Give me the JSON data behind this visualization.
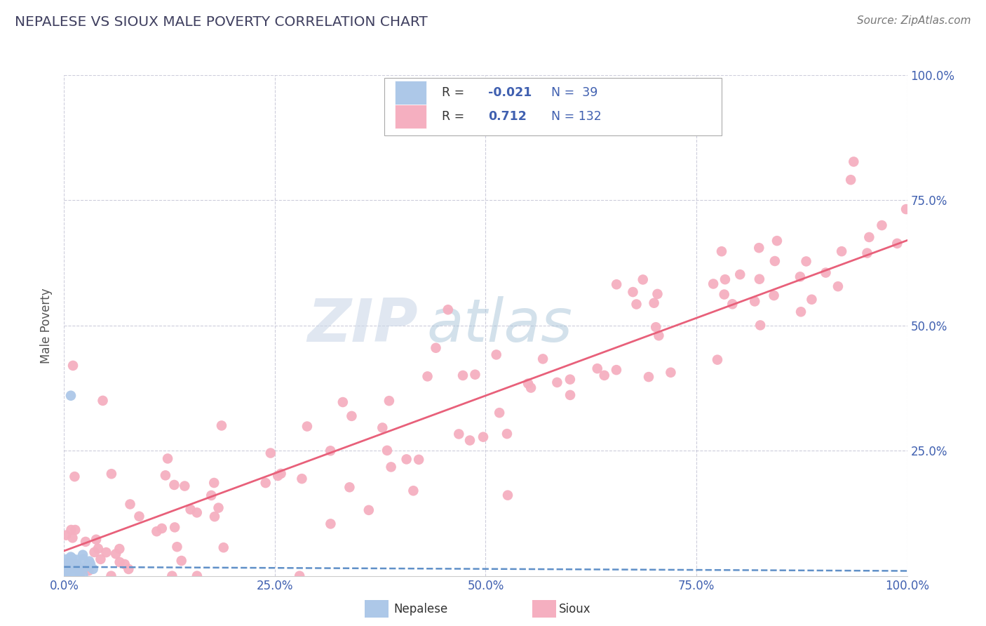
{
  "title": "NEPALESE VS SIOUX MALE POVERTY CORRELATION CHART",
  "source_text": "Source: ZipAtlas.com",
  "ylabel": "Male Poverty",
  "xlim": [
    0.0,
    1.0
  ],
  "ylim": [
    0.0,
    1.0
  ],
  "xtick_labels": [
    "0.0%",
    "25.0%",
    "50.0%",
    "75.0%",
    "100.0%"
  ],
  "xtick_positions": [
    0.0,
    0.25,
    0.5,
    0.75,
    1.0
  ],
  "ytick_labels": [
    "25.0%",
    "50.0%",
    "75.0%",
    "100.0%"
  ],
  "ytick_positions": [
    0.25,
    0.5,
    0.75,
    1.0
  ],
  "nepalese_color": "#adc8e8",
  "sioux_color": "#f5afc0",
  "nepalese_line_color": "#6090c8",
  "sioux_line_color": "#e8607a",
  "tick_color": "#4060b0",
  "title_color": "#404060",
  "R_nepalese": -0.021,
  "N_nepalese": 39,
  "R_sioux": 0.712,
  "N_sioux": 132,
  "background_color": "#ffffff",
  "grid_color": "#c8c8d8",
  "legend_border_color": "#aaaaaa",
  "watermark_zip_color": "#ccd8e8",
  "watermark_atlas_color": "#a8c4d8"
}
